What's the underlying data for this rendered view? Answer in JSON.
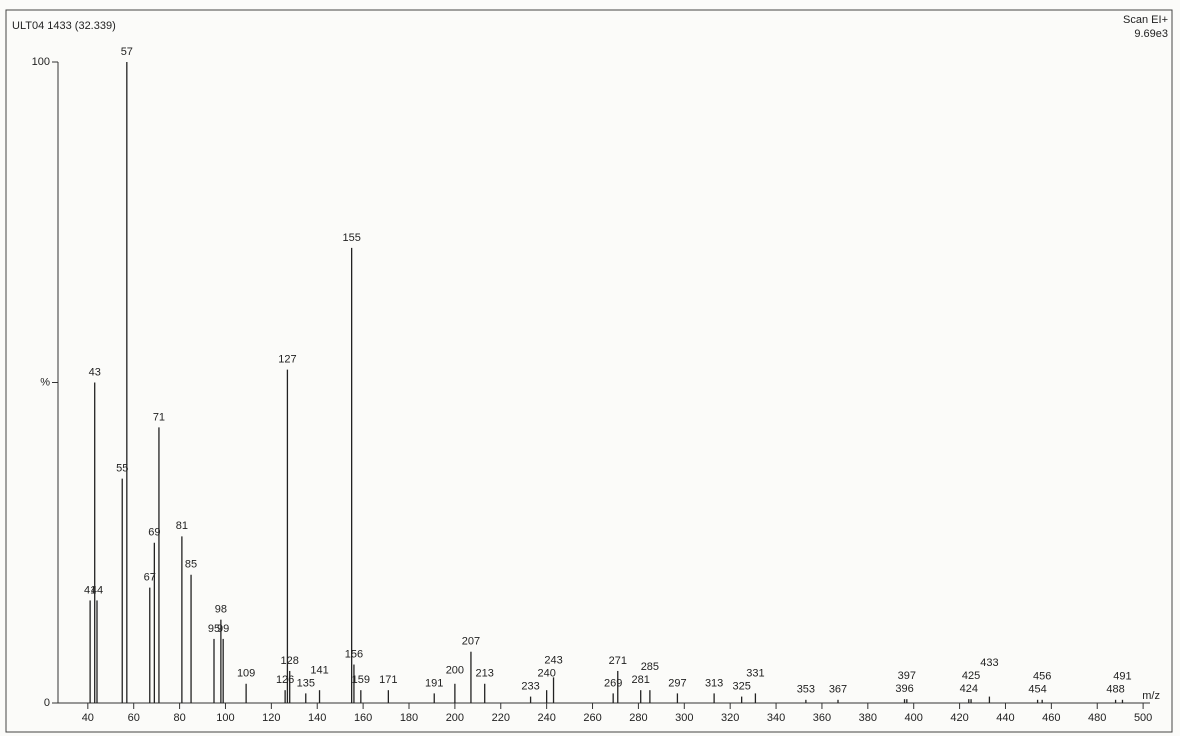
{
  "chart_data": {
    "type": "bar",
    "title": "ULT04 1433 (32.339)",
    "scan_mode": "Scan EI+",
    "base_intensity": "9.69e3",
    "x_label": "m/z",
    "x": [
      41,
      43,
      44,
      55,
      57,
      67,
      69,
      71,
      81,
      85,
      95,
      98,
      99,
      109,
      126,
      127,
      128,
      135,
      141,
      155,
      156,
      159,
      171,
      191,
      200,
      207,
      213,
      233,
      240,
      243,
      269,
      271,
      281,
      285,
      297,
      313,
      325,
      331,
      353,
      367,
      396,
      397,
      424,
      425,
      433,
      454,
      456,
      488,
      491
    ],
    "values": [
      16,
      50,
      16,
      35,
      100,
      18,
      25,
      43,
      26,
      20,
      10,
      13,
      10,
      3,
      2,
      52,
      5,
      1.5,
      2,
      71,
      6,
      2,
      2,
      1.5,
      3,
      8,
      3,
      1,
      2,
      4,
      1.5,
      5,
      2,
      2,
      1.5,
      1.5,
      1,
      1.5,
      0.5,
      0.5,
      0.6,
      0.6,
      0.6,
      0.6,
      1,
      0.5,
      0.5,
      0.5,
      0.5
    ],
    "color": "#222222",
    "xlim": [
      27,
      503
    ],
    "ylim": [
      0,
      100
    ],
    "xticks": [
      40,
      60,
      80,
      100,
      120,
      140,
      160,
      180,
      200,
      220,
      240,
      260,
      280,
      300,
      320,
      340,
      360,
      380,
      400,
      420,
      440,
      460,
      480,
      500
    ],
    "yticks": [
      0,
      {
        "value": 50,
        "label": "%"
      },
      100
    ]
  }
}
